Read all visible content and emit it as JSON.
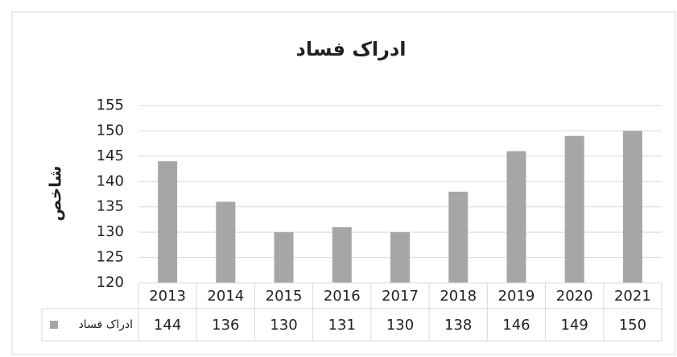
{
  "chart_data": {
    "type": "bar",
    "title": "ادراک فساد",
    "y_label": "شاخص",
    "categories": [
      "2013",
      "2014",
      "2015",
      "2016",
      "2017",
      "2018",
      "2019",
      "2020",
      "2021"
    ],
    "series": [
      {
        "name": "ادراک فساد",
        "color": "#a6a6a6",
        "values": [
          144,
          136,
          130,
          131,
          130,
          138,
          146,
          149,
          150
        ]
      }
    ],
    "ylim": [
      120,
      155
    ],
    "yticks": [
      120,
      125,
      130,
      135,
      140,
      145,
      150,
      155
    ],
    "grid": true,
    "data_table": true
  }
}
